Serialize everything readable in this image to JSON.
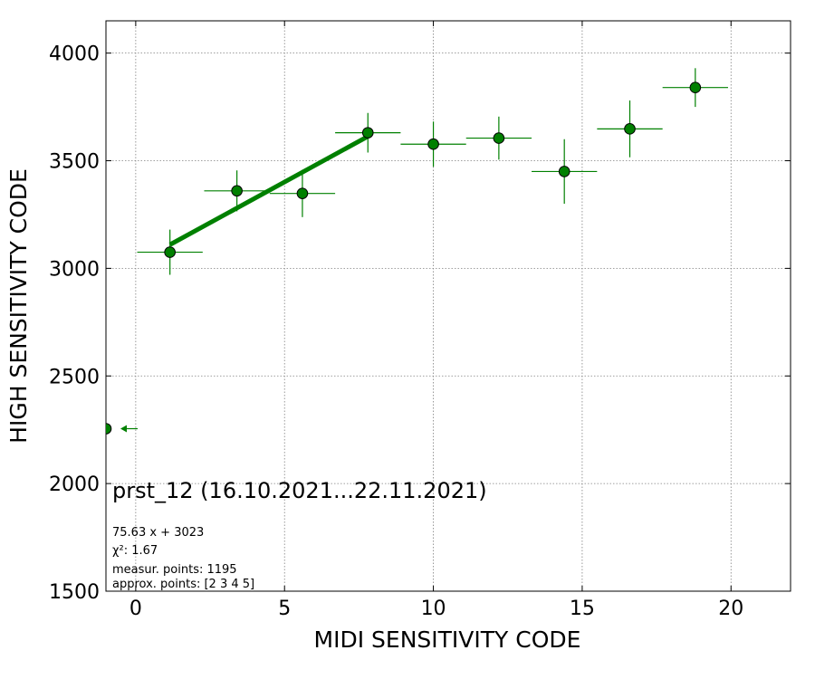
{
  "chart_data": {
    "type": "scatter",
    "title": "prst_12 (16.10.2021...22.11.2021)",
    "xlabel": "MIDI SENSITIVITY CODE",
    "ylabel": "HIGH SENSITIVITY CODE",
    "xlim": [
      -1,
      22
    ],
    "ylim": [
      1500,
      4150
    ],
    "xticks": [
      0,
      5,
      10,
      15,
      20
    ],
    "yticks": [
      1500,
      2000,
      2500,
      3000,
      3500,
      4000
    ],
    "grid": true,
    "color": "#008000",
    "points": [
      {
        "x": -1.0,
        "y": 2255,
        "xerr_left": 0.0,
        "xerr_right": 0.1,
        "yerr": 0
      },
      {
        "x": 1.15,
        "y": 3075,
        "xerr_left": 1.1,
        "xerr_right": 1.1,
        "yerr": 105
      },
      {
        "x": 3.4,
        "y": 3360,
        "xerr_left": 1.1,
        "xerr_right": 1.1,
        "yerr": 95
      },
      {
        "x": 5.6,
        "y": 3348,
        "xerr_left": 1.1,
        "xerr_right": 1.1,
        "yerr": 110
      },
      {
        "x": 7.8,
        "y": 3630,
        "xerr_left": 1.1,
        "xerr_right": 1.1,
        "yerr": 92
      },
      {
        "x": 10.0,
        "y": 3577,
        "xerr_left": 1.1,
        "xerr_right": 1.1,
        "yerr": 105
      },
      {
        "x": 12.2,
        "y": 3605,
        "xerr_left": 1.1,
        "xerr_right": 1.1,
        "yerr": 100
      },
      {
        "x": 14.4,
        "y": 3450,
        "xerr_left": 1.1,
        "xerr_right": 1.1,
        "yerr": 150
      },
      {
        "x": 16.6,
        "y": 3648,
        "xerr_left": 1.1,
        "xerr_right": 1.1,
        "yerr": 132
      },
      {
        "x": 18.8,
        "y": 3840,
        "xerr_left": 1.1,
        "xerr_right": 1.1,
        "yerr": 90
      }
    ],
    "fit": {
      "slope": 75.63,
      "intercept": 3023,
      "x_range": [
        1.15,
        7.8
      ],
      "equation": "75.63 x + 3023",
      "chi2_label": "χ²: 1.67"
    },
    "info": {
      "measur_points": "measur. points: 1195",
      "approx_points": "approx. points: [2 3 4 5]"
    }
  }
}
